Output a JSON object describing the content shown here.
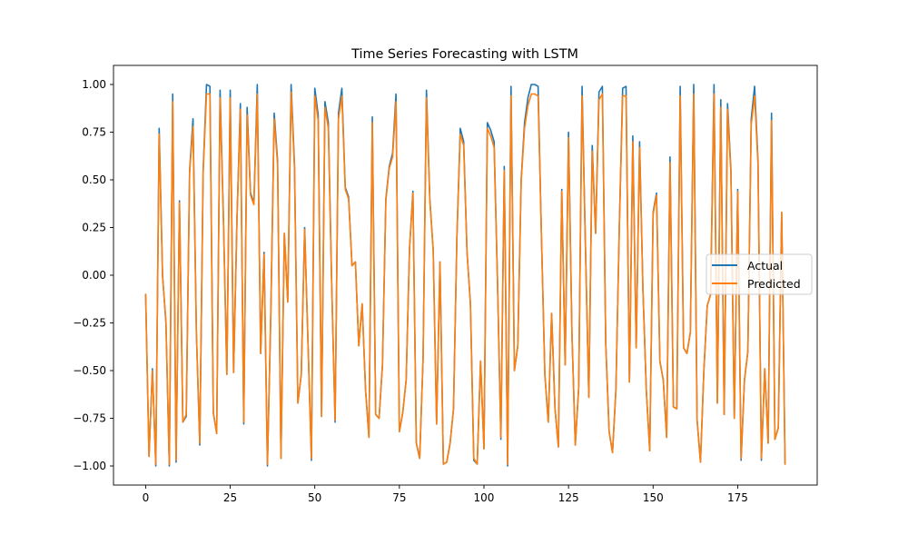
{
  "chart_data": {
    "type": "line",
    "title": "Time Series Forecasting with LSTM",
    "xlabel": "",
    "ylabel": "",
    "xlim": [
      -9.5,
      198.5
    ],
    "ylim": [
      -1.1,
      1.1
    ],
    "xticks": [
      0,
      25,
      50,
      75,
      100,
      125,
      150,
      175
    ],
    "xtick_labels": [
      "0",
      "25",
      "50",
      "75",
      "100",
      "125",
      "150",
      "175"
    ],
    "yticks": [
      -1.0,
      -0.75,
      -0.5,
      -0.25,
      0.0,
      0.25,
      0.5,
      0.75,
      1.0
    ],
    "ytick_labels": [
      "−1.00",
      "−0.75",
      "−0.50",
      "−0.25",
      "0.00",
      "0.25",
      "0.50",
      "0.75",
      "1.00"
    ],
    "grid": false,
    "legend_position": "center-right",
    "x": [
      0,
      1,
      2,
      3,
      4,
      5,
      6,
      7,
      8,
      9,
      10,
      11,
      12,
      13,
      14,
      15,
      16,
      17,
      18,
      19,
      20,
      21,
      22,
      23,
      24,
      25,
      26,
      27,
      28,
      29,
      30,
      31,
      32,
      33,
      34,
      35,
      36,
      37,
      38,
      39,
      40,
      41,
      42,
      43,
      44,
      45,
      46,
      47,
      48,
      49,
      50,
      51,
      52,
      53,
      54,
      55,
      56,
      57,
      58,
      59,
      60,
      61,
      62,
      63,
      64,
      65,
      66,
      67,
      68,
      69,
      70,
      71,
      72,
      73,
      74,
      75,
      76,
      77,
      78,
      79,
      80,
      81,
      82,
      83,
      84,
      85,
      86,
      87,
      88,
      89,
      90,
      91,
      92,
      93,
      94,
      95,
      96,
      97,
      98,
      99,
      100,
      101,
      102,
      103,
      104,
      105,
      106,
      107,
      108,
      109,
      110,
      111,
      112,
      113,
      114,
      115,
      116,
      117,
      118,
      119,
      120,
      121,
      122,
      123,
      124,
      125,
      126,
      127,
      128,
      129,
      130,
      131,
      132,
      133,
      134,
      135,
      136,
      137,
      138,
      139,
      140,
      141,
      142,
      143,
      144,
      145,
      146,
      147,
      148,
      149,
      150,
      151,
      152,
      153,
      154,
      155,
      156,
      157,
      158,
      159,
      160,
      161,
      162,
      163,
      164,
      165,
      166,
      167,
      168,
      169,
      170,
      171,
      172,
      173,
      174,
      175,
      176,
      177,
      178,
      179,
      180,
      181,
      182,
      183,
      184,
      185,
      186,
      187,
      188,
      189
    ],
    "series": [
      {
        "name": "Actual",
        "color": "#1f77b4",
        "values": [
          -0.1,
          -0.95,
          -0.49,
          -1.0,
          0.77,
          0.0,
          -0.25,
          -1.0,
          0.95,
          -0.98,
          0.39,
          -0.77,
          -0.74,
          0.55,
          0.82,
          -0.3,
          -0.89,
          0.55,
          1.0,
          0.99,
          -0.72,
          -0.83,
          0.97,
          0.3,
          -0.52,
          0.97,
          -0.51,
          0.3,
          0.9,
          -0.78,
          0.88,
          0.43,
          0.38,
          1.0,
          -0.41,
          0.12,
          -1.0,
          -0.2,
          0.85,
          0.6,
          -0.96,
          0.22,
          -0.14,
          1.0,
          0.58,
          -0.67,
          -0.52,
          0.25,
          -0.36,
          -0.97,
          0.98,
          0.84,
          -0.74,
          0.91,
          0.8,
          -0.05,
          -0.77,
          0.85,
          0.98,
          0.46,
          0.41,
          0.05,
          0.07,
          -0.37,
          -0.15,
          -0.6,
          -0.85,
          0.83,
          -0.73,
          -0.75,
          -0.47,
          0.4,
          0.57,
          0.64,
          0.95,
          -0.82,
          -0.72,
          -0.55,
          0.14,
          0.44,
          -0.88,
          -0.96,
          -0.44,
          0.97,
          0.4,
          0.13,
          -0.78,
          0.07,
          -0.99,
          -0.98,
          -0.88,
          -0.7,
          0.2,
          0.77,
          0.7,
          0.12,
          -0.15,
          -0.97,
          -0.99,
          -0.45,
          -0.91,
          0.8,
          0.76,
          0.7,
          -0.03,
          -0.86,
          0.57,
          -1.0,
          0.99,
          -0.5,
          -0.37,
          0.5,
          0.8,
          0.93,
          1.0,
          1.0,
          0.99,
          0.2,
          -0.52,
          -0.77,
          -0.2,
          -0.7,
          -0.9,
          0.45,
          -0.47,
          0.75,
          -0.3,
          -0.89,
          -0.59,
          0.99,
          0.15,
          -0.64,
          0.68,
          0.22,
          0.96,
          0.99,
          -0.36,
          -0.82,
          -0.93,
          -0.6,
          0.25,
          0.98,
          0.99,
          -0.56,
          0.73,
          -0.38,
          0.7,
          -0.08,
          -0.61,
          -0.92,
          0.33,
          0.43,
          -0.45,
          -0.55,
          -0.85,
          0.62,
          -0.69,
          -0.7,
          0.99,
          -0.38,
          -0.41,
          -0.3,
          1.0,
          -0.76,
          -0.98,
          -0.5,
          -0.16,
          -0.1,
          1.0,
          -0.67,
          0.92,
          -0.73,
          0.9,
          0.55,
          -0.75,
          0.45,
          -0.97,
          -0.55,
          -0.4,
          0.82,
          0.99,
          0.6,
          -0.97,
          -0.49,
          -0.88,
          0.85,
          -0.86,
          -0.8,
          0.33,
          -0.99
        ]
      },
      {
        "name": "Predicted",
        "color": "#ff7f0e",
        "values": [
          -0.1,
          -0.95,
          -0.5,
          -0.99,
          0.74,
          -0.01,
          -0.24,
          -0.99,
          0.91,
          -0.97,
          0.38,
          -0.77,
          -0.73,
          0.54,
          0.78,
          -0.3,
          -0.88,
          0.54,
          0.95,
          0.95,
          -0.72,
          -0.83,
          0.93,
          0.29,
          -0.52,
          0.93,
          -0.51,
          0.29,
          0.87,
          -0.77,
          0.84,
          0.42,
          0.37,
          0.95,
          -0.41,
          0.11,
          -0.99,
          -0.2,
          0.82,
          0.58,
          -0.96,
          0.22,
          -0.14,
          0.96,
          0.56,
          -0.67,
          -0.52,
          0.24,
          -0.36,
          -0.96,
          0.94,
          0.81,
          -0.74,
          0.88,
          0.77,
          -0.05,
          -0.76,
          0.82,
          0.94,
          0.45,
          0.4,
          0.05,
          0.07,
          -0.37,
          -0.15,
          -0.6,
          -0.85,
          0.8,
          -0.73,
          -0.75,
          -0.47,
          0.39,
          0.56,
          0.62,
          0.91,
          -0.82,
          -0.72,
          -0.55,
          0.14,
          0.43,
          -0.88,
          -0.96,
          -0.44,
          0.93,
          0.39,
          0.13,
          -0.78,
          0.07,
          -0.99,
          -0.98,
          -0.88,
          -0.7,
          0.2,
          0.74,
          0.68,
          0.12,
          -0.15,
          -0.96,
          -0.99,
          -0.45,
          -0.91,
          0.77,
          0.73,
          0.67,
          -0.03,
          -0.85,
          0.55,
          -0.99,
          0.94,
          -0.5,
          -0.37,
          0.49,
          0.77,
          0.89,
          0.95,
          0.95,
          0.94,
          0.2,
          -0.52,
          -0.77,
          -0.2,
          -0.7,
          -0.9,
          0.44,
          -0.47,
          0.72,
          -0.3,
          -0.89,
          -0.59,
          0.94,
          0.15,
          -0.64,
          0.65,
          0.22,
          0.92,
          0.95,
          -0.36,
          -0.82,
          -0.93,
          -0.6,
          0.24,
          0.94,
          0.94,
          -0.56,
          0.7,
          -0.38,
          0.67,
          -0.08,
          -0.61,
          -0.92,
          0.32,
          0.42,
          -0.45,
          -0.55,
          -0.85,
          0.59,
          -0.69,
          -0.7,
          0.94,
          -0.38,
          -0.41,
          -0.3,
          0.95,
          -0.76,
          -0.98,
          -0.5,
          -0.16,
          -0.1,
          0.95,
          -0.67,
          0.88,
          -0.73,
          0.87,
          0.53,
          -0.75,
          0.44,
          -0.96,
          -0.55,
          -0.4,
          0.79,
          0.94,
          0.58,
          -0.96,
          -0.49,
          -0.88,
          0.81,
          -0.86,
          -0.8,
          0.33,
          -0.99
        ]
      }
    ]
  }
}
